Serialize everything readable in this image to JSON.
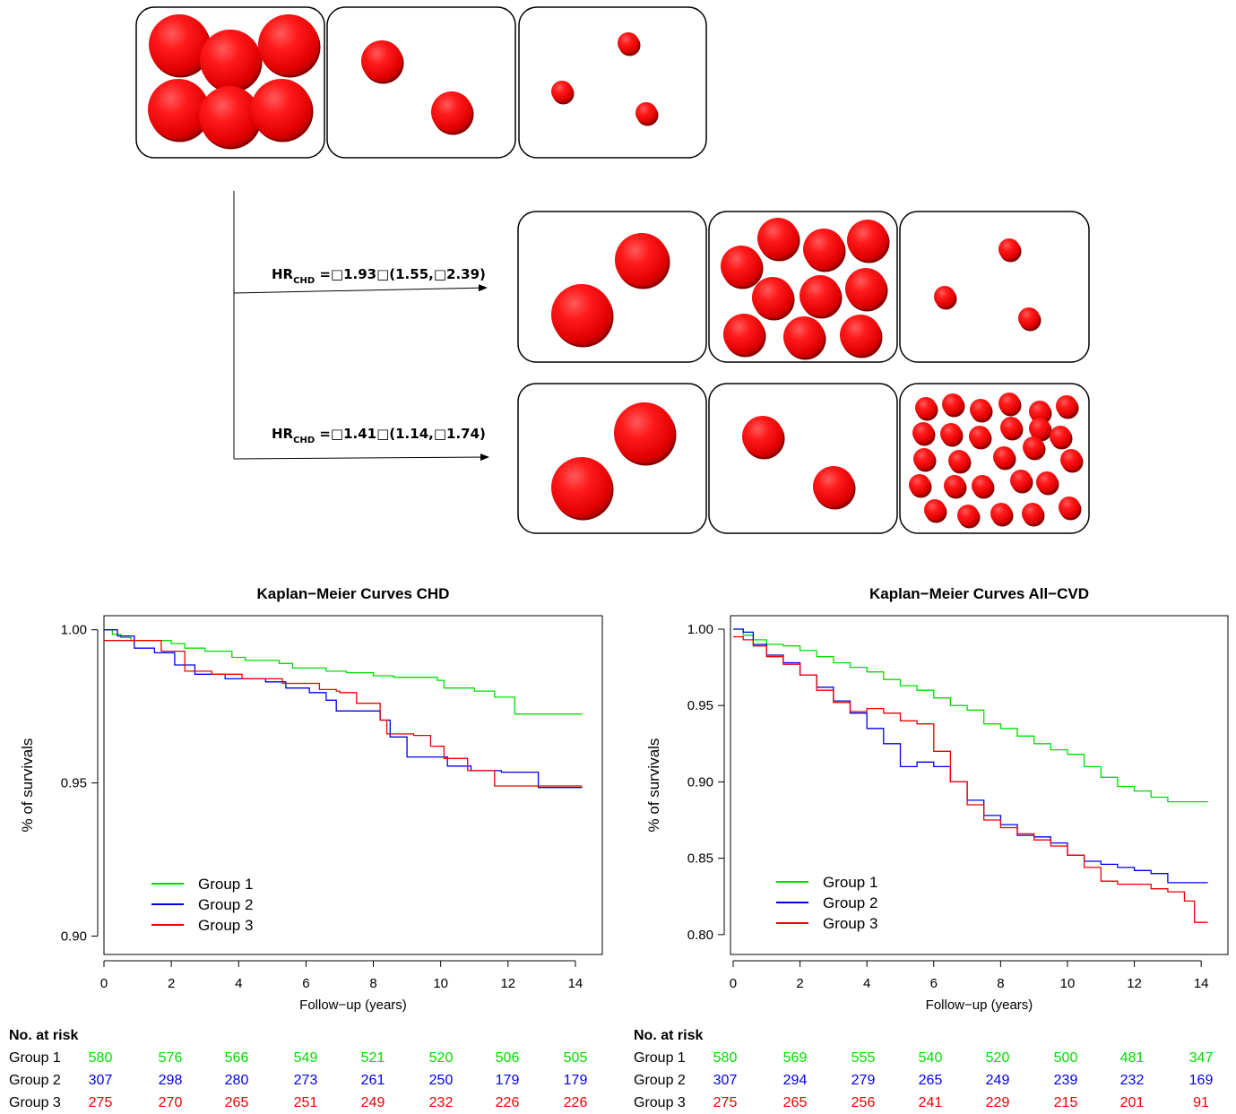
{
  "diagram": {
    "hr_labels": [
      {
        "prefix": "HR",
        "subscript": "CHD",
        "value": " =□1.93□(1.55,□2.39)"
      },
      {
        "prefix": "HR",
        "subscript": "CHD",
        "value": " =□1.41□(1.14,□1.74)"
      }
    ]
  },
  "series_colors": {
    "Group 1": "#00dd00",
    "Group 2": "#0000ee",
    "Group 3": "#ee0000"
  },
  "chart_data": [
    {
      "type": "line",
      "title": "Kaplan−Meier Curves CHD",
      "xlabel": "Follow−up (years)",
      "ylabel": "% of survivals",
      "xlim": [
        0,
        14.8
      ],
      "ylim": [
        0.894,
        1.0046
      ],
      "xticks": [
        "0",
        "2",
        "4",
        "6",
        "8",
        "10",
        "12",
        "14"
      ],
      "yticks": [
        "0.90",
        "0.95",
        "1.00"
      ],
      "legend_position": "bottom-left",
      "series": [
        {
          "name": "Group 1",
          "color": "#00dd00",
          "x": [
            0,
            0.25,
            0.5,
            0.8,
            2.0,
            2.4,
            3.0,
            3.8,
            4.2,
            5.2,
            5.6,
            6.6,
            7.2,
            8.0,
            8.6,
            9.4,
            9.9,
            10.1,
            11.0,
            11.6,
            12.2,
            14.2
          ],
          "y": [
            1.0,
            0.9985,
            0.9975,
            0.9965,
            0.9955,
            0.994,
            0.993,
            0.991,
            0.99,
            0.989,
            0.9875,
            0.9865,
            0.986,
            0.985,
            0.9845,
            0.9845,
            0.9835,
            0.981,
            0.98,
            0.978,
            0.9725,
            0.9725
          ]
        },
        {
          "name": "Group 2",
          "color": "#0000ee",
          "x": [
            0,
            0.4,
            0.9,
            1.5,
            2.1,
            2.7,
            3.6,
            4.8,
            5.4,
            6.1,
            6.6,
            6.9,
            7.6,
            8.2,
            8.5,
            9.0,
            10.2,
            10.9,
            11.8,
            12.9,
            14.2
          ],
          "y": [
            1.0,
            0.998,
            0.994,
            0.9925,
            0.9885,
            0.9855,
            0.984,
            0.983,
            0.981,
            0.9795,
            0.977,
            0.9735,
            0.9735,
            0.9705,
            0.965,
            0.9585,
            0.9555,
            0.954,
            0.9535,
            0.9485,
            0.9485
          ]
        },
        {
          "name": "Group 3",
          "color": "#ee0000",
          "x": [
            0,
            0.9,
            1.7,
            2.4,
            3.2,
            4.1,
            5.3,
            6.4,
            6.9,
            7.0,
            7.5,
            8.2,
            8.4,
            9.2,
            9.7,
            10.1,
            10.8,
            11.6,
            14.2
          ],
          "y": [
            0.9965,
            0.9965,
            0.993,
            0.9865,
            0.9855,
            0.984,
            0.9825,
            0.9805,
            0.98,
            0.9795,
            0.976,
            0.9705,
            0.966,
            0.9655,
            0.962,
            0.958,
            0.954,
            0.949,
            0.949
          ]
        }
      ],
      "risk_table": {
        "title": "No. at risk",
        "rows": [
          {
            "label": "Group 1",
            "values": [
              "580",
              "576",
              "566",
              "549",
              "521",
              "520",
              "506",
              "505"
            ]
          },
          {
            "label": "Group 2",
            "values": [
              "307",
              "298",
              "280",
              "273",
              "261",
              "250",
              "179",
              "179"
            ]
          },
          {
            "label": "Group 3",
            "values": [
              "275",
              "270",
              "265",
              "251",
              "249",
              "232",
              "226",
              "226"
            ]
          }
        ]
      }
    },
    {
      "type": "line",
      "title": "Kaplan−Meier Curves All−CVD",
      "xlabel": "Follow−up (years)",
      "ylabel": "% of survivals",
      "xlim": [
        -0.08,
        14.8
      ],
      "ylim": [
        0.787,
        1.0088
      ],
      "xticks": [
        "0",
        "2",
        "4",
        "6",
        "8",
        "10",
        "12",
        "14"
      ],
      "yticks": [
        "0.80",
        "0.85",
        "0.90",
        "0.95",
        "1.00"
      ],
      "legend_position": "bottom-left",
      "series": [
        {
          "name": "Group 1",
          "color": "#00dd00",
          "x": [
            0,
            0.3,
            0.6,
            1.0,
            1.5,
            2.0,
            2.5,
            3.0,
            3.5,
            4.0,
            4.5,
            5.0,
            5.5,
            6.0,
            6.5,
            7.0,
            7.5,
            8.0,
            8.5,
            9.0,
            9.5,
            10.0,
            10.5,
            11.0,
            11.5,
            12.0,
            12.5,
            13.0,
            14.2
          ],
          "y": [
            1.0,
            0.996,
            0.993,
            0.99,
            0.989,
            0.986,
            0.982,
            0.978,
            0.975,
            0.972,
            0.967,
            0.963,
            0.96,
            0.955,
            0.95,
            0.947,
            0.938,
            0.935,
            0.93,
            0.925,
            0.921,
            0.918,
            0.91,
            0.903,
            0.897,
            0.894,
            0.89,
            0.887,
            0.887
          ]
        },
        {
          "name": "Group 2",
          "color": "#0000ee",
          "x": [
            0,
            0.3,
            0.6,
            1.0,
            1.5,
            2.0,
            2.5,
            3.0,
            3.5,
            4.0,
            4.5,
            5.0,
            5.5,
            6.0,
            6.5,
            7.0,
            7.5,
            8.0,
            8.5,
            9.0,
            9.5,
            10.0,
            10.5,
            11.0,
            11.5,
            12.0,
            12.5,
            13.0,
            14.2
          ],
          "y": [
            1.0,
            0.998,
            0.99,
            0.983,
            0.978,
            0.97,
            0.962,
            0.953,
            0.945,
            0.935,
            0.925,
            0.91,
            0.913,
            0.91,
            0.9,
            0.888,
            0.878,
            0.872,
            0.865,
            0.864,
            0.86,
            0.852,
            0.848,
            0.846,
            0.844,
            0.842,
            0.84,
            0.834,
            0.834
          ]
        },
        {
          "name": "Group 3",
          "color": "#ee0000",
          "x": [
            0,
            0.3,
            0.6,
            1.0,
            1.5,
            2.0,
            2.5,
            3.0,
            3.5,
            4.0,
            4.5,
            5.0,
            5.5,
            6.0,
            6.5,
            7.0,
            7.5,
            8.0,
            8.5,
            9.0,
            9.5,
            10.0,
            10.5,
            11.0,
            11.5,
            12.0,
            12.5,
            13.0,
            13.5,
            13.8,
            14.2
          ],
          "y": [
            0.995,
            0.993,
            0.989,
            0.982,
            0.977,
            0.97,
            0.96,
            0.952,
            0.946,
            0.948,
            0.945,
            0.94,
            0.938,
            0.92,
            0.9,
            0.885,
            0.875,
            0.87,
            0.866,
            0.862,
            0.858,
            0.852,
            0.844,
            0.835,
            0.833,
            0.833,
            0.83,
            0.828,
            0.822,
            0.808,
            0.808
          ]
        }
      ],
      "risk_table": {
        "title": "No. at risk",
        "rows": [
          {
            "label": "Group 1",
            "values": [
              "580",
              "569",
              "555",
              "540",
              "520",
              "500",
              "481",
              "347"
            ]
          },
          {
            "label": "Group 2",
            "values": [
              "307",
              "294",
              "279",
              "265",
              "249",
              "239",
              "232",
              "169"
            ]
          },
          {
            "label": "Group 3",
            "values": [
              "275",
              "265",
              "256",
              "241",
              "229",
              "215",
              "201",
              "91"
            ]
          }
        ]
      }
    }
  ]
}
